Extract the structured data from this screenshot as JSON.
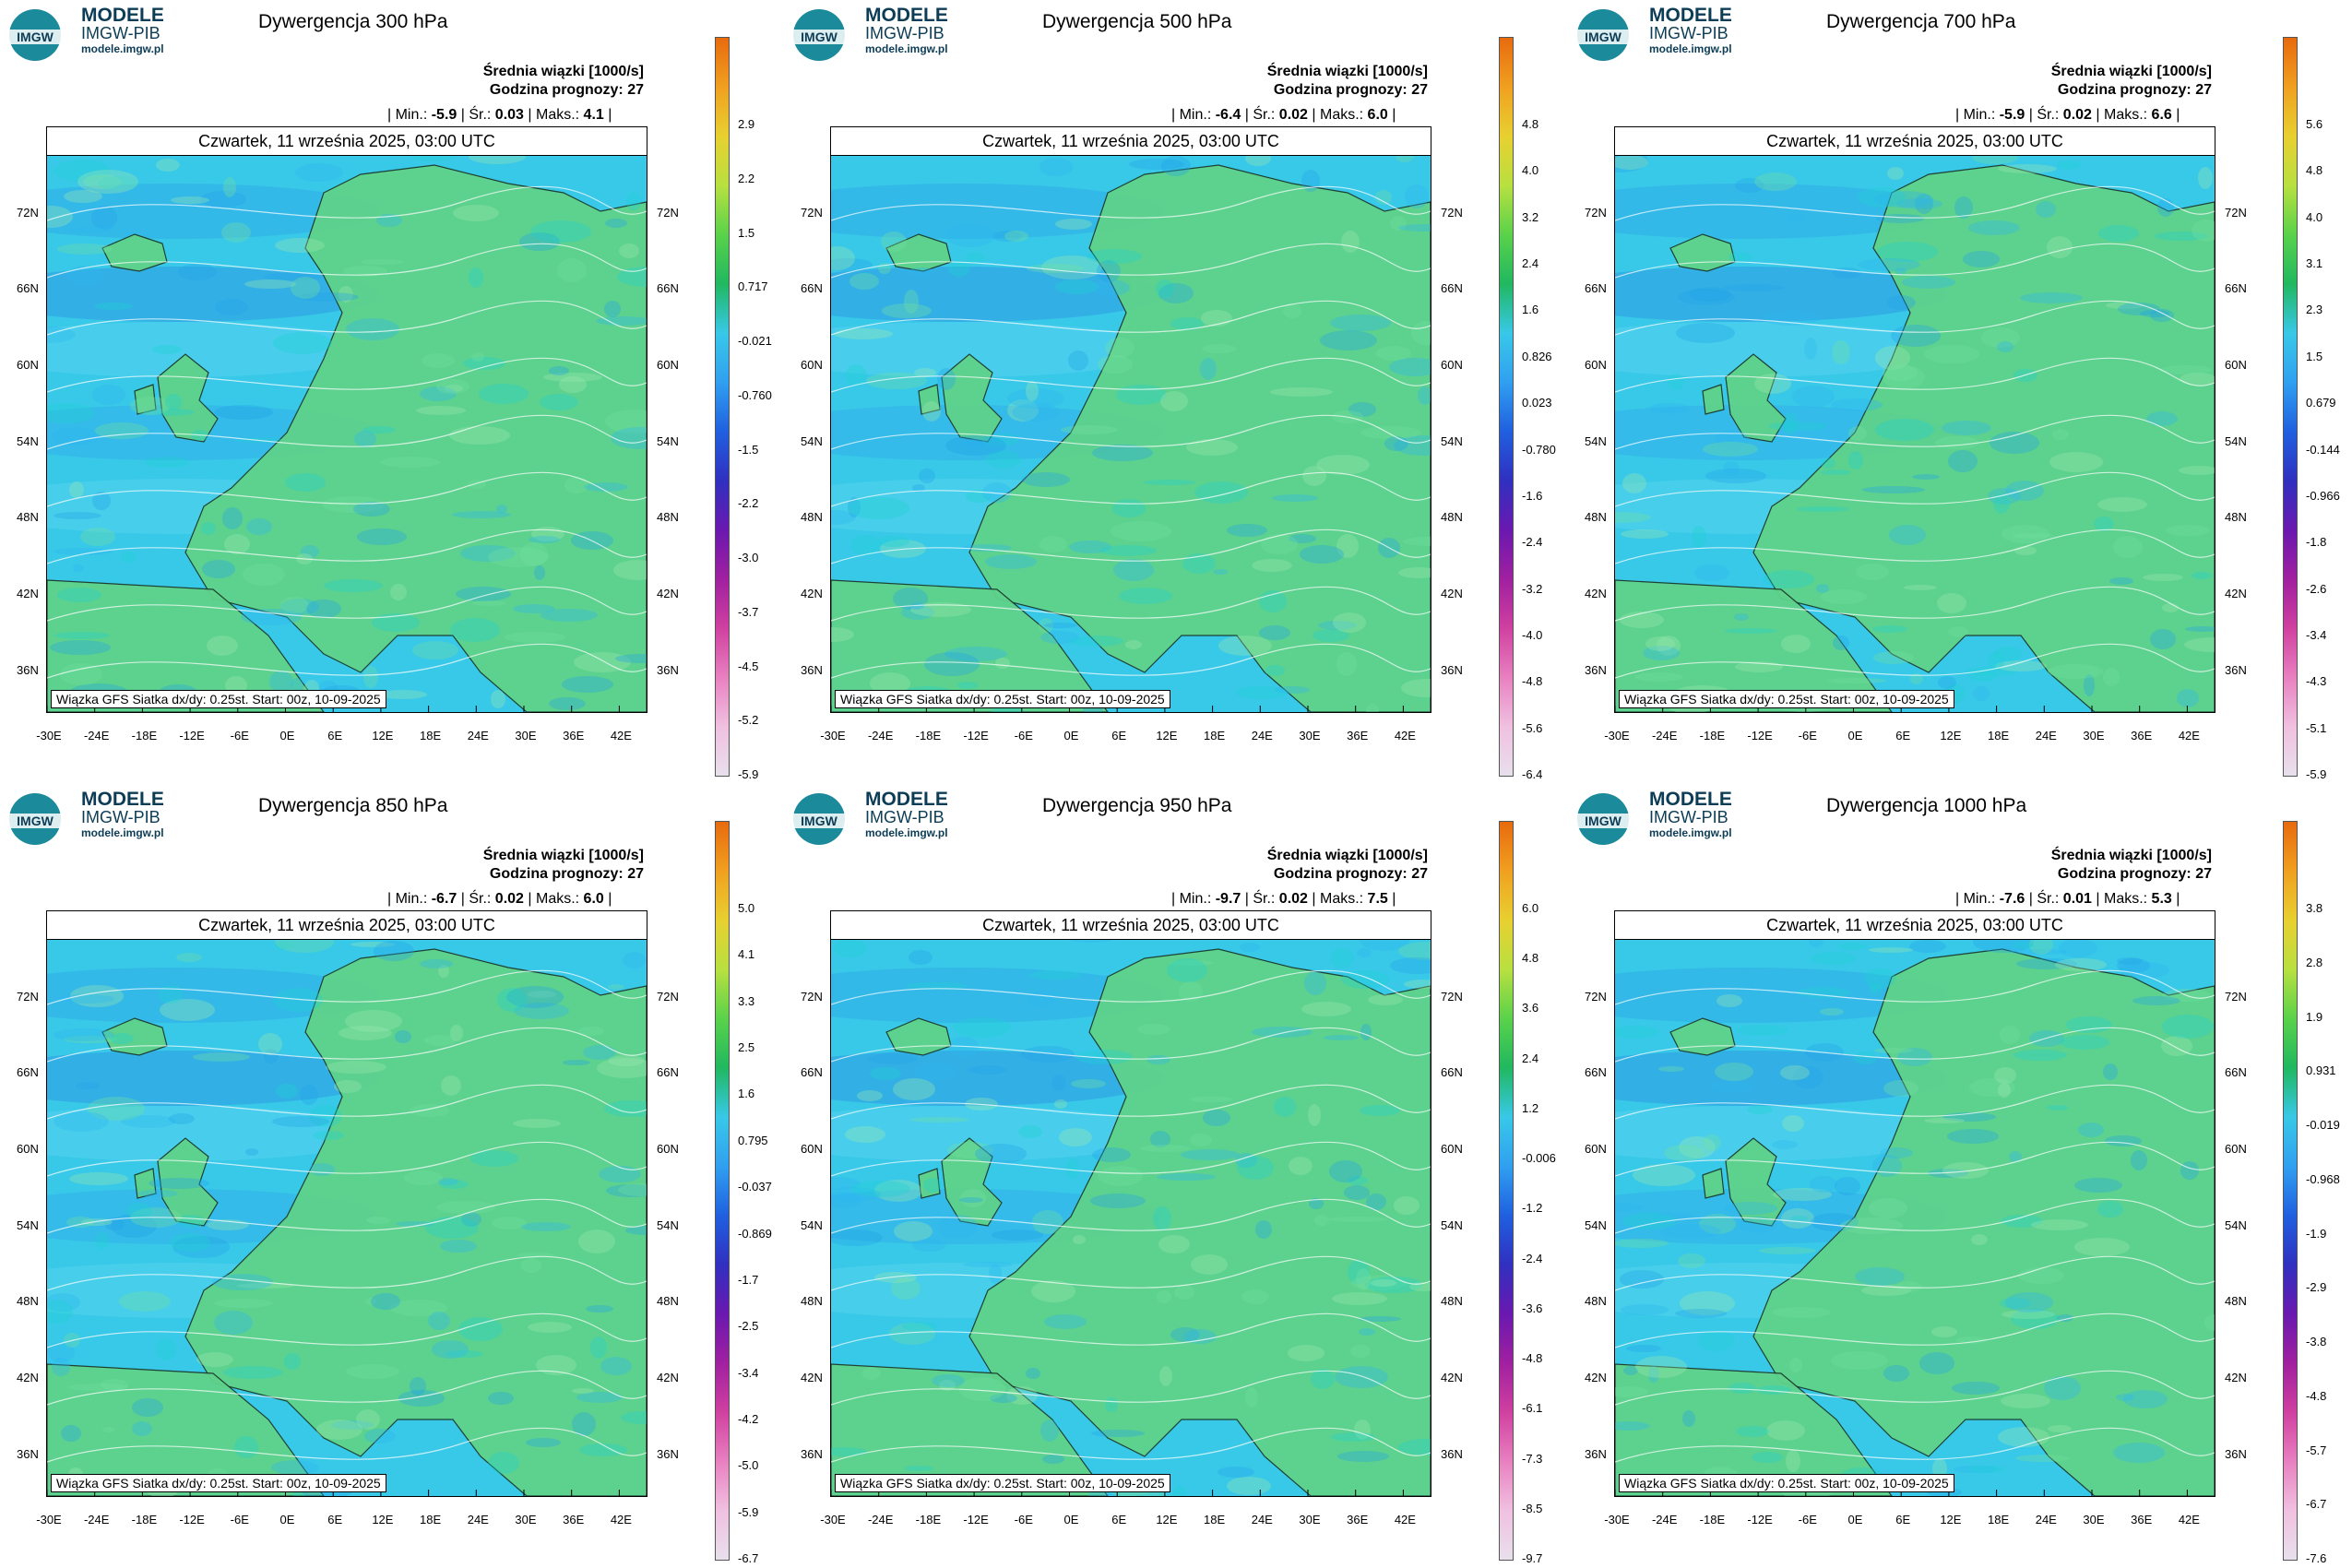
{
  "brand": {
    "line1": "MODELE",
    "line2": "IMGW-PIB",
    "line3": "modele.imgw.pl",
    "logo_text": "IMGW"
  },
  "common": {
    "subtitle1": "Średnia wiązki [1000/s]",
    "subtitle2": "Godzina prognozy: 27",
    "date": "Czwartek, 11 września 2025, 03:00 UTC",
    "footer": "Wiązka GFS Siatka dx/dy: 0.25st. Start: 00z, 10-09-2025",
    "stat_labels": {
      "min": "Min.:",
      "mean": "Śr.:",
      "max": "Maks.:"
    },
    "lat_labels": [
      "72N",
      "66N",
      "60N",
      "54N",
      "48N",
      "42N",
      "36N"
    ],
    "lon_labels": [
      "-30E",
      "-24E",
      "-18E",
      "-12E",
      "-6E",
      "0E",
      "6E",
      "12E",
      "18E",
      "24E",
      "30E",
      "36E",
      "42E"
    ]
  },
  "colors": {
    "sea_base": "#38c8e8",
    "land_base": "#5fd28a",
    "accent": "#0d3d56"
  },
  "panels": [
    {
      "title": "Dywergencja 300 hPa",
      "min": "-5.9",
      "mean": "0.03",
      "max": "4.1",
      "colorbar": [
        "2.9",
        "2.2",
        "1.5",
        "0.717",
        "-0.021",
        "-0.760",
        "-1.5",
        "-2.2",
        "-3.0",
        "-3.7",
        "-4.5",
        "-5.2",
        "-5.9"
      ]
    },
    {
      "title": "Dywergencja 500 hPa",
      "min": "-6.4",
      "mean": "0.02",
      "max": "6.0",
      "colorbar": [
        "4.8",
        "4.0",
        "3.2",
        "2.4",
        "1.6",
        "0.826",
        "0.023",
        "-0.780",
        "-1.6",
        "-2.4",
        "-3.2",
        "-4.0",
        "-4.8",
        "-5.6",
        "-6.4"
      ]
    },
    {
      "title": "Dywergencja 700 hPa",
      "min": "-5.9",
      "mean": "0.02",
      "max": "6.6",
      "colorbar": [
        "5.6",
        "4.8",
        "4.0",
        "3.1",
        "2.3",
        "1.5",
        "0.679",
        "-0.144",
        "-0.966",
        "-1.8",
        "-2.6",
        "-3.4",
        "-4.3",
        "-5.1",
        "-5.9"
      ]
    },
    {
      "title": "Dywergencja 850 hPa",
      "min": "-6.7",
      "mean": "0.02",
      "max": "6.0",
      "colorbar": [
        "5.0",
        "4.1",
        "3.3",
        "2.5",
        "1.6",
        "0.795",
        "-0.037",
        "-0.869",
        "-1.7",
        "-2.5",
        "-3.4",
        "-4.2",
        "-5.0",
        "-5.9",
        "-6.7"
      ]
    },
    {
      "title": "Dywergencja 950 hPa",
      "min": "-9.7",
      "mean": "0.02",
      "max": "7.5",
      "colorbar": [
        "6.0",
        "4.8",
        "3.6",
        "2.4",
        "1.2",
        "-0.006",
        "-1.2",
        "-2.4",
        "-3.6",
        "-4.8",
        "-6.1",
        "-7.3",
        "-8.5",
        "-9.7"
      ]
    },
    {
      "title": "Dywergencja 1000 hPa",
      "min": "-7.6",
      "mean": "0.01",
      "max": "5.3",
      "colorbar": [
        "3.8",
        "2.8",
        "1.9",
        "0.931",
        "-0.019",
        "-0.968",
        "-1.9",
        "-2.9",
        "-3.8",
        "-4.8",
        "-5.7",
        "-6.7",
        "-7.6"
      ]
    }
  ]
}
